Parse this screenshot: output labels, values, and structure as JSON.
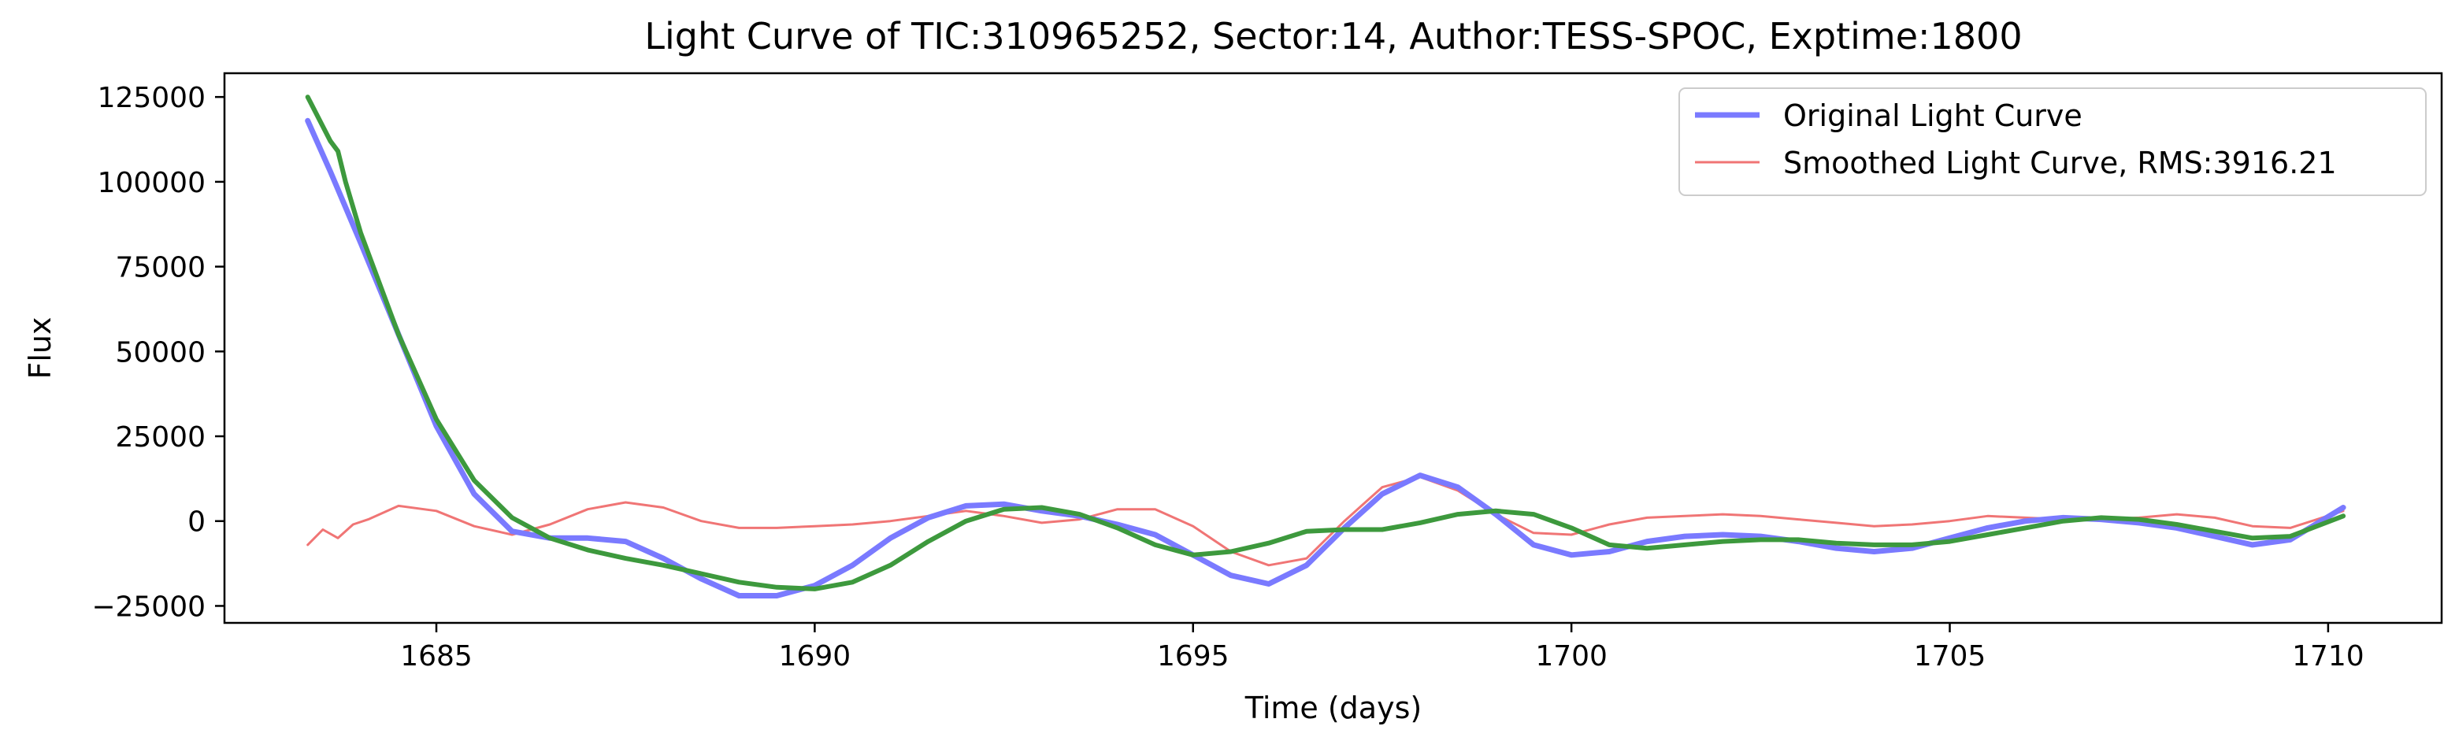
{
  "chart_data": {
    "type": "line",
    "title": "Light Curve of TIC:310965252, Sector:14, Author:TESS-SPOC, Exptime:1800",
    "xlabel": "Time (days)",
    "ylabel": "Flux",
    "xlim": [
      1682.2,
      1711.5
    ],
    "ylim": [
      -30000,
      132000
    ],
    "xticks": [
      1685,
      1690,
      1695,
      1700,
      1705,
      1710
    ],
    "yticks": [
      -25000,
      0,
      25000,
      50000,
      75000,
      100000,
      125000
    ],
    "xtick_labels": [
      "1685",
      "1690",
      "1695",
      "1700",
      "1705",
      "1710"
    ],
    "ytick_labels": [
      "−25000",
      "0",
      "25000",
      "50000",
      "75000",
      "100000",
      "125000"
    ],
    "grid": false,
    "legend_position": "top-right",
    "series": [
      {
        "name": "Original Light Curve",
        "color": "#7a7aff",
        "x": [
          1683.3,
          1683.6,
          1684.0,
          1684.5,
          1685.0,
          1685.5,
          1686.0,
          1686.5,
          1687.0,
          1687.5,
          1688.0,
          1688.5,
          1689.0,
          1689.5,
          1690.0,
          1690.5,
          1691.0,
          1691.5,
          1692.0,
          1692.5,
          1693.0,
          1693.5,
          1694.0,
          1694.5,
          1695.0,
          1695.5,
          1696.0,
          1696.5,
          1697.0,
          1697.5,
          1698.0,
          1698.5,
          1699.0,
          1699.5,
          1700.0,
          1700.5,
          1701.0,
          1701.5,
          1702.0,
          1702.5,
          1703.0,
          1703.5,
          1704.0,
          1704.5,
          1705.0,
          1705.5,
          1706.0,
          1706.5,
          1707.0,
          1707.5,
          1708.0,
          1708.5,
          1709.0,
          1709.5,
          1710.2
        ],
        "values": [
          118000,
          103000,
          82000,
          55000,
          28000,
          8000,
          -3000,
          -5000,
          -5000,
          -6000,
          -11000,
          -17000,
          -22000,
          -22000,
          -19000,
          -13000,
          -5000,
          1000,
          4500,
          5000,
          3000,
          1500,
          -1000,
          -4000,
          -10000,
          -16000,
          -18500,
          -13000,
          -2000,
          8000,
          13500,
          10000,
          2000,
          -7000,
          -10000,
          -9000,
          -6000,
          -4500,
          -4000,
          -4500,
          -6000,
          -8000,
          -9000,
          -8000,
          -5000,
          -2000,
          0,
          1000,
          500,
          -500,
          -2000,
          -4500,
          -7000,
          -5500,
          4000
        ]
      },
      {
        "name": "Smoothed Light Curve, RMS:3916.21",
        "color": "#f07575",
        "x": [
          1683.3,
          1683.5,
          1683.7,
          1683.9,
          1684.1,
          1684.5,
          1685.0,
          1685.5,
          1686.0,
          1686.5,
          1687.0,
          1687.5,
          1688.0,
          1688.5,
          1689.0,
          1689.5,
          1690.0,
          1690.5,
          1691.0,
          1691.5,
          1692.0,
          1692.5,
          1693.0,
          1693.5,
          1694.0,
          1694.5,
          1695.0,
          1695.5,
          1696.0,
          1696.5,
          1697.0,
          1697.5,
          1698.0,
          1698.5,
          1699.0,
          1699.5,
          1700.0,
          1700.5,
          1701.0,
          1701.5,
          1702.0,
          1702.5,
          1703.0,
          1703.5,
          1704.0,
          1704.5,
          1705.0,
          1705.5,
          1706.0,
          1706.5,
          1707.0,
          1707.5,
          1708.0,
          1708.5,
          1709.0,
          1709.5,
          1710.2
        ],
        "values": [
          -7000,
          -2500,
          -5000,
          -1000,
          500,
          4500,
          3000,
          -1500,
          -4000,
          -1000,
          3500,
          5500,
          4000,
          0,
          -2000,
          -2000,
          -1500,
          -1000,
          0,
          1500,
          3000,
          1500,
          -500,
          500,
          3500,
          3500,
          -1500,
          -9000,
          -13000,
          -11000,
          0,
          10000,
          13000,
          9000,
          2000,
          -3500,
          -4000,
          -1000,
          1000,
          1500,
          2000,
          1500,
          500,
          -500,
          -1500,
          -1000,
          0,
          1500,
          1000,
          500,
          500,
          1000,
          2000,
          1000,
          -1500,
          -2000,
          3000
        ]
      },
      {
        "name": "",
        "color": "#3d993d",
        "x": [
          1683.3,
          1683.6,
          1683.7,
          1683.8,
          1684.0,
          1684.5,
          1685.0,
          1685.5,
          1686.0,
          1686.5,
          1687.0,
          1687.5,
          1688.0,
          1688.5,
          1689.0,
          1689.5,
          1690.0,
          1690.5,
          1691.0,
          1691.5,
          1692.0,
          1692.5,
          1693.0,
          1693.5,
          1694.0,
          1694.5,
          1695.0,
          1695.5,
          1696.0,
          1696.5,
          1697.0,
          1697.5,
          1698.0,
          1698.5,
          1699.0,
          1699.5,
          1700.0,
          1700.5,
          1701.0,
          1701.5,
          1702.0,
          1702.5,
          1703.0,
          1703.5,
          1704.0,
          1704.5,
          1705.0,
          1705.5,
          1706.0,
          1706.5,
          1707.0,
          1707.5,
          1708.0,
          1708.5,
          1709.0,
          1709.5,
          1710.2
        ],
        "values": [
          125000,
          112000,
          109000,
          100000,
          85000,
          55000,
          30000,
          12000,
          1000,
          -5000,
          -8500,
          -11000,
          -13000,
          -15500,
          -18000,
          -19500,
          -20000,
          -18000,
          -13000,
          -6000,
          0,
          3500,
          4000,
          2000,
          -2000,
          -7000,
          -10000,
          -9000,
          -6500,
          -3000,
          -2500,
          -2500,
          -500,
          2000,
          3000,
          2000,
          -2000,
          -7000,
          -8000,
          -7000,
          -6000,
          -5500,
          -5500,
          -6500,
          -7000,
          -7000,
          -6000,
          -4000,
          -2000,
          0,
          1000,
          500,
          -1000,
          -3000,
          -5000,
          -4500,
          1500
        ]
      }
    ]
  }
}
